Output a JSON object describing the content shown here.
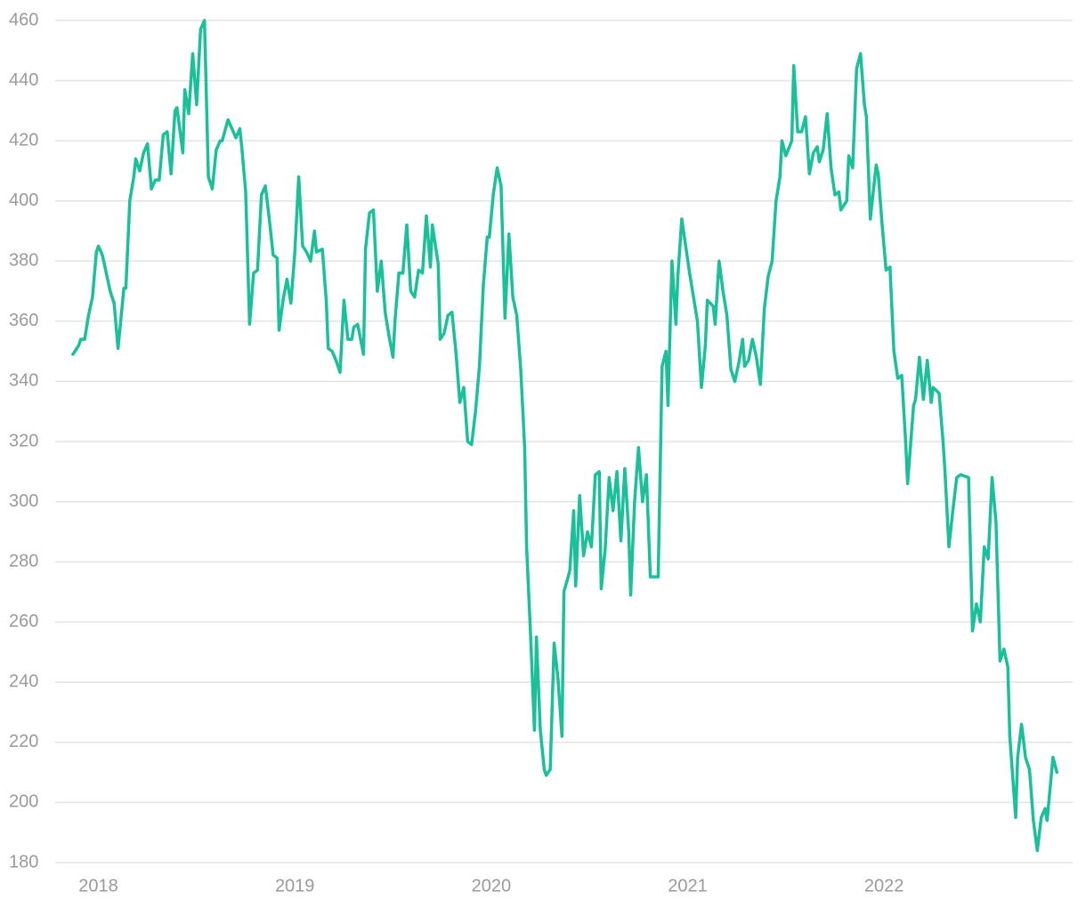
{
  "chart_data": {
    "type": "line",
    "color": "#19c09a",
    "grid": true,
    "xlim": [
      2017.78,
      2022.96
    ],
    "xticks": [
      2018,
      2019,
      2020,
      2021,
      2022
    ],
    "ylim": [
      180,
      460
    ],
    "yticks": [
      180,
      200,
      220,
      240,
      260,
      280,
      300,
      320,
      340,
      360,
      380,
      400,
      420,
      440,
      460
    ],
    "x": [
      2017.87,
      2017.9,
      2017.91,
      2017.93,
      2017.95,
      2017.97,
      2017.99,
      2018.0,
      2018.02,
      2018.04,
      2018.06,
      2018.08,
      2018.1,
      2018.13,
      2018.14,
      2018.16,
      2018.18,
      2018.19,
      2018.21,
      2018.23,
      2018.25,
      2018.27,
      2018.29,
      2018.31,
      2018.33,
      2018.35,
      2018.37,
      2018.39,
      2018.4,
      2018.43,
      2018.44,
      2018.46,
      2018.48,
      2018.5,
      2018.52,
      2018.54,
      2018.56,
      2018.58,
      2018.6,
      2018.62,
      2018.63,
      2018.66,
      2018.68,
      2018.7,
      2018.72,
      2018.73,
      2018.75,
      2018.77,
      2018.79,
      2018.81,
      2018.83,
      2018.85,
      2018.87,
      2018.89,
      2018.91,
      2018.92,
      2018.94,
      2018.96,
      2018.98,
      2019.0,
      2019.02,
      2019.04,
      2019.06,
      2019.08,
      2019.1,
      2019.11,
      2019.14,
      2019.16,
      2019.17,
      2019.19,
      2019.21,
      2019.23,
      2019.25,
      2019.27,
      2019.29,
      2019.3,
      2019.32,
      2019.35,
      2019.36,
      2019.38,
      2019.4,
      2019.42,
      2019.44,
      2019.46,
      2019.48,
      2019.5,
      2019.51,
      2019.53,
      2019.55,
      2019.57,
      2019.59,
      2019.61,
      2019.63,
      2019.65,
      2019.67,
      2019.69,
      2019.7,
      2019.73,
      2019.74,
      2019.76,
      2019.78,
      2019.8,
      2019.82,
      2019.84,
      2019.86,
      2019.88,
      2019.9,
      2019.92,
      2019.94,
      2019.96,
      2019.98,
      2019.99,
      2020.01,
      2020.03,
      2020.05,
      2020.07,
      2020.09,
      2020.11,
      2020.13,
      2020.15,
      2020.17,
      2020.18,
      2020.2,
      2020.22,
      2020.23,
      2020.25,
      2020.27,
      2020.28,
      2020.3,
      2020.32,
      2020.34,
      2020.36,
      2020.37,
      2020.4,
      2020.42,
      2020.43,
      2020.45,
      2020.47,
      2020.49,
      2020.51,
      2020.53,
      2020.55,
      2020.56,
      2020.58,
      2020.6,
      2020.62,
      2020.64,
      2020.66,
      2020.68,
      2020.7,
      2020.71,
      2020.73,
      2020.75,
      2020.77,
      2020.79,
      2020.81,
      2020.83,
      2020.85,
      2020.87,
      2020.89,
      2020.9,
      2020.92,
      2020.94,
      2020.95,
      2020.97,
      2020.99,
      2021.01,
      2021.03,
      2021.05,
      2021.07,
      2021.09,
      2021.1,
      2021.13,
      2021.14,
      2021.16,
      2021.18,
      2021.2,
      2021.22,
      2021.24,
      2021.26,
      2021.28,
      2021.29,
      2021.31,
      2021.33,
      2021.35,
      2021.37,
      2021.39,
      2021.41,
      2021.43,
      2021.45,
      2021.47,
      2021.48,
      2021.5,
      2021.53,
      2021.54,
      2021.56,
      2021.58,
      2021.6,
      2021.62,
      2021.64,
      2021.66,
      2021.67,
      2021.69,
      2021.71,
      2021.73,
      2021.75,
      2021.77,
      2021.78,
      2021.81,
      2021.82,
      2021.84,
      2021.86,
      2021.88,
      2021.9,
      2021.91,
      2021.93,
      2021.96,
      2021.97,
      2021.99,
      2022.01,
      2022.03,
      2022.05,
      2022.07,
      2022.09,
      2022.11,
      2022.12,
      2022.15,
      2022.16,
      2022.18,
      2022.2,
      2022.22,
      2022.24,
      2022.25,
      2022.28,
      2022.3,
      2022.31,
      2022.33,
      2022.35,
      2022.37,
      2022.39,
      2022.43,
      2022.45,
      2022.47,
      2022.49,
      2022.51,
      2022.53,
      2022.55,
      2022.57,
      2022.59,
      2022.61,
      2022.63,
      2022.64,
      2022.67,
      2022.68,
      2022.7,
      2022.72,
      2022.74,
      2022.76,
      2022.78,
      2022.8,
      2022.82,
      2022.83,
      2022.86,
      2022.88
    ],
    "values": [
      349,
      352,
      354,
      354,
      362,
      368,
      383,
      385,
      382,
      376,
      370,
      366,
      351,
      371,
      371,
      400,
      408,
      414,
      410,
      416,
      419,
      404,
      407,
      407,
      422,
      423,
      409,
      430,
      431,
      416,
      437,
      429,
      449,
      432,
      457,
      460,
      408,
      404,
      417,
      420,
      420,
      427,
      424,
      421,
      424,
      418,
      403,
      359,
      376,
      377,
      402,
      405,
      394,
      382,
      381,
      357,
      367,
      374,
      366,
      383,
      408,
      385,
      383,
      380,
      390,
      383,
      384,
      367,
      351,
      350,
      347,
      343,
      367,
      354,
      354,
      358,
      359,
      349,
      384,
      396,
      397,
      370,
      380,
      363,
      355,
      348,
      360,
      376,
      376,
      392,
      370,
      368,
      377,
      376,
      395,
      378,
      392,
      379,
      354,
      356,
      362,
      363,
      350,
      333,
      338,
      320,
      319,
      330,
      345,
      372,
      388,
      388,
      402,
      411,
      405,
      361,
      389,
      368,
      362,
      344,
      318,
      285,
      256,
      224,
      255,
      224,
      211,
      209,
      211,
      253,
      241,
      222,
      270,
      277,
      297,
      272,
      302,
      282,
      290,
      285,
      309,
      310,
      271,
      284,
      308,
      297,
      310,
      287,
      311,
      290,
      269,
      300,
      318,
      300,
      309,
      275,
      275,
      275,
      345,
      350,
      332,
      380,
      359,
      375,
      394,
      385,
      376,
      368,
      360,
      338,
      352,
      367,
      365,
      359,
      380,
      370,
      362,
      344,
      340,
      346,
      354,
      345,
      347,
      354,
      348,
      339,
      364,
      375,
      380,
      400,
      408,
      420,
      415,
      420,
      445,
      423,
      423,
      428,
      409,
      416,
      418,
      413,
      417,
      429,
      411,
      402,
      403,
      397,
      400,
      415,
      411,
      444,
      449,
      432,
      428,
      394,
      412,
      409,
      392,
      377,
      378,
      350,
      341,
      342,
      320,
      306,
      332,
      334,
      348,
      334,
      347,
      333,
      338,
      336,
      320,
      310,
      285,
      297,
      308,
      309,
      308,
      257,
      266,
      260,
      285,
      281,
      308,
      293,
      247,
      251,
      245,
      222,
      195,
      215,
      226,
      215,
      211,
      194,
      184,
      195,
      198,
      194,
      215,
      210
    ]
  }
}
